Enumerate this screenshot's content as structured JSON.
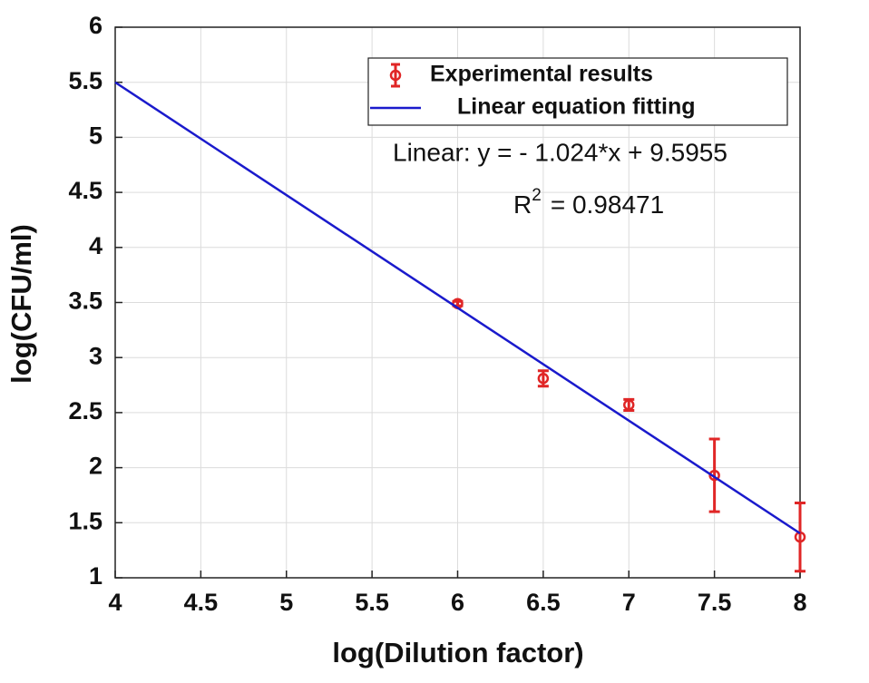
{
  "chart_data": {
    "type": "scatter",
    "xlabel": "log(Dilution factor)",
    "ylabel": "log(CFU/ml)",
    "xlim": [
      4,
      8
    ],
    "xticks": [
      4,
      4.5,
      5,
      5.5,
      6,
      6.5,
      7,
      7.5,
      8
    ],
    "ylim": [
      1,
      6
    ],
    "yticks": [
      1,
      1.5,
      2,
      2.5,
      3,
      3.5,
      4,
      4.5,
      5,
      5.5,
      6
    ],
    "grid": true,
    "legend": "upper right",
    "series": [
      {
        "name": "Experimental results",
        "color": "#e02626",
        "x": [
          6,
          6.5,
          7,
          7.5,
          8
        ],
        "values": [
          3.49,
          2.81,
          2.57,
          1.93,
          1.37
        ],
        "errors": [
          0.02,
          0.07,
          0.05,
          0.33,
          0.31
        ]
      },
      {
        "name": "Linear equation fitting",
        "color": "#1a1acc",
        "x": [
          4,
          8
        ],
        "values": [
          5.4995,
          1.4035
        ]
      }
    ],
    "equation": "Linear:  y = - 1.024*x + 9.5955",
    "r2": {
      "symbol": "R",
      "exponent": "2",
      "text": "= 0.98471"
    }
  }
}
